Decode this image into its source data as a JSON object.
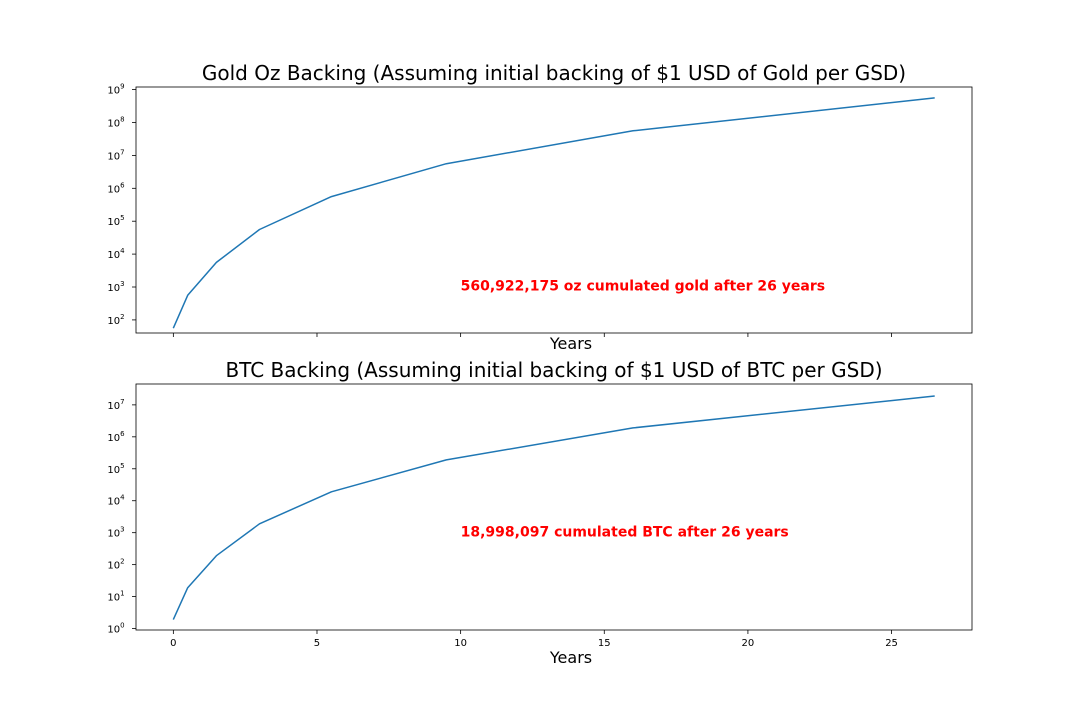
{
  "chart_data": [
    {
      "type": "line",
      "title": "Gold Oz Backing (Assuming initial backing of $1 USD of Gold per GSD)",
      "xlabel": "Years",
      "ylabel": "",
      "yscale": "log",
      "ylim": [
        40,
        1200000000
      ],
      "xlim": [
        -1.3,
        27.8
      ],
      "x_tick_labels_shown": false,
      "y_ticks": [
        {
          "base": "10",
          "exp": "2",
          "value": 100
        },
        {
          "base": "10",
          "exp": "3",
          "value": 1000
        },
        {
          "base": "10",
          "exp": "4",
          "value": 10000
        },
        {
          "base": "10",
          "exp": "5",
          "value": 100000
        },
        {
          "base": "10",
          "exp": "6",
          "value": 1000000
        },
        {
          "base": "10",
          "exp": "7",
          "value": 10000000
        },
        {
          "base": "10",
          "exp": "8",
          "value": 100000000
        },
        {
          "base": "10",
          "exp": "9",
          "value": 1000000000
        }
      ],
      "series": [
        {
          "color": "#1f77b4",
          "x": [
            0,
            0.5,
            1.5,
            3,
            5.5,
            9.5,
            16,
            26.5
          ],
          "y": [
            56,
            560,
            5600,
            56000,
            560000,
            5600000,
            56000000,
            560922175
          ]
        }
      ],
      "annotation": {
        "text": "560,922,175 oz cumulated gold after 26 years",
        "x": 10,
        "y": 1100,
        "color": "#ff0000"
      },
      "grid": false
    },
    {
      "type": "line",
      "title": "BTC Backing (Assuming initial backing of $1 USD of BTC per GSD)",
      "xlabel": "Years",
      "ylabel": "",
      "yscale": "log",
      "ylim": [
        0.9,
        45000000
      ],
      "xlim": [
        -1.3,
        27.8
      ],
      "x_ticks": [
        {
          "value": 0,
          "label": "0"
        },
        {
          "value": 5,
          "label": "5"
        },
        {
          "value": 10,
          "label": "10"
        },
        {
          "value": 15,
          "label": "15"
        },
        {
          "value": 20,
          "label": "20"
        },
        {
          "value": 25,
          "label": "25"
        }
      ],
      "y_ticks": [
        {
          "base": "10",
          "exp": "0",
          "value": 1
        },
        {
          "base": "10",
          "exp": "1",
          "value": 10
        },
        {
          "base": "10",
          "exp": "2",
          "value": 100
        },
        {
          "base": "10",
          "exp": "3",
          "value": 1000
        },
        {
          "base": "10",
          "exp": "4",
          "value": 10000
        },
        {
          "base": "10",
          "exp": "5",
          "value": 100000
        },
        {
          "base": "10",
          "exp": "6",
          "value": 1000000
        },
        {
          "base": "10",
          "exp": "7",
          "value": 10000000
        }
      ],
      "series": [
        {
          "color": "#1f77b4",
          "x": [
            0,
            0.5,
            1.5,
            3,
            5.5,
            9.5,
            16,
            26.5
          ],
          "y": [
            1.9,
            19,
            190,
            1900,
            19000,
            190000,
            1900000,
            18998097
          ]
        }
      ],
      "annotation": {
        "text": "18,998,097 cumulated BTC after 26 years",
        "x": 10,
        "y": 1100,
        "color": "#ff0000"
      },
      "grid": false
    }
  ]
}
